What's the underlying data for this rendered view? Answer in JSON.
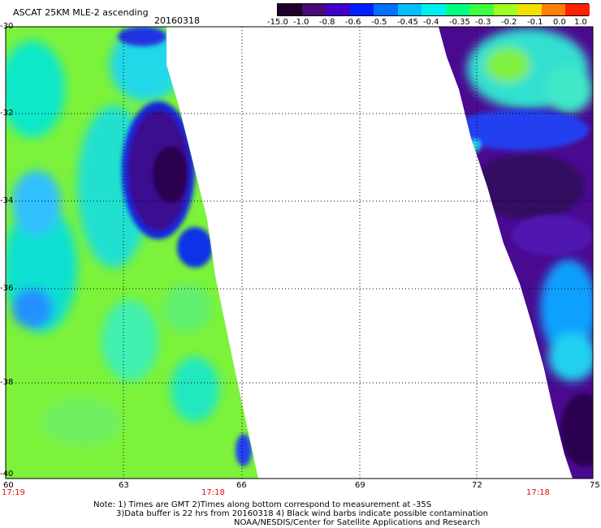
{
  "header": {
    "title": "ASCAT 25KM MLE-2 ascending",
    "date": "20160318"
  },
  "colorbar": {
    "labels": [
      "-15.0",
      "-1.0",
      "-0.8",
      "-0.6",
      "-0.5",
      "-0.45",
      "-0.4",
      "-0.35",
      "-0.3",
      "-0.2",
      "-0.1",
      "0.0",
      "1.0"
    ],
    "colors": [
      "#200028",
      "#4a0a78",
      "#3f00c8",
      "#0020ff",
      "#0070ff",
      "#00c0ff",
      "#00f0f0",
      "#00ff80",
      "#40ff40",
      "#a0ff20",
      "#f0e000",
      "#ff8000",
      "#ff2000"
    ]
  },
  "y_axis": {
    "ticks": [
      "-30",
      "-32",
      "-34",
      "-36",
      "-38",
      "-40"
    ]
  },
  "x_axis": {
    "ticks": [
      "60",
      "63",
      "66",
      "69",
      "72",
      "75"
    ]
  },
  "time_labels": [
    "17:19",
    "17:18",
    "17:18"
  ],
  "notes": [
    "Note: 1) Times are GMT 2)Times along bottom correspond to measurement at -35S",
    "3)Data buffer is 22 hrs from 20160318 4) Black wind barbs indicate possible contamination",
    "NOAA/NESDIS/Center for Satellite Applications and Research"
  ]
}
